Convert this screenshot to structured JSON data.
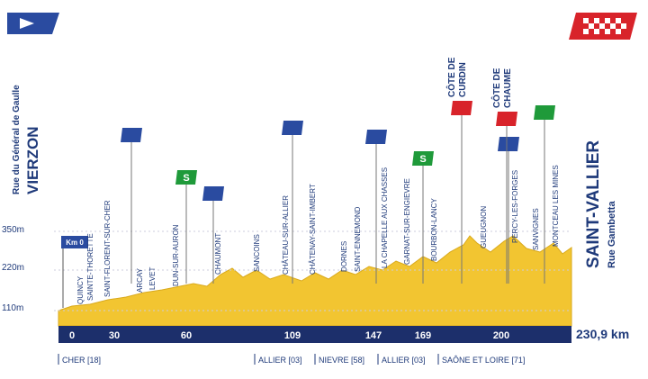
{
  "start": {
    "street": "Rue du Général de Gaulle",
    "city": "VIERZON",
    "km0": "Km 0"
  },
  "finish": {
    "city": "SAINT-VALLIER",
    "street": "Rue Gambetta",
    "distance": "230,9 km"
  },
  "altitudes": [
    "350m",
    "220m",
    "110m"
  ],
  "km_markers": [
    "0",
    "30",
    "60",
    "109",
    "147",
    "169",
    "200"
  ],
  "places": [
    "QUINCY",
    "SAINTE-THORETTE",
    "SAINT-FLORENT-SUR-CHER",
    "ARCAY",
    "LEVET",
    "DUN-SUR-AURON",
    "CHAUMONT",
    "SANCOINS",
    "CHÂTEAU-SUR-ALLIER",
    "CHÂTENAY-SAINT-IMBERT",
    "DORNES",
    "SAINT-ENNEMOND",
    "LA CHAPELLE AUX CHASSES",
    "GARNAT-SUR-ENGIEVRE",
    "BOURBON-LANCY",
    "GUEUGNON",
    "PERCY-LES-FORGES",
    "SANVIGNES",
    "MONTCEAU LES MINES"
  ],
  "climbs": [
    [
      "CÔTE DE",
      "CURDIN"
    ],
    [
      "CÔTE DE",
      "CHAUME"
    ]
  ],
  "sprint": "S",
  "departments": [
    "CHER [18]",
    "ALLIER [03]",
    "NIEVRE [58]",
    "ALLIER [03]",
    "SAÔNE ET LOIRE [71]"
  ]
}
